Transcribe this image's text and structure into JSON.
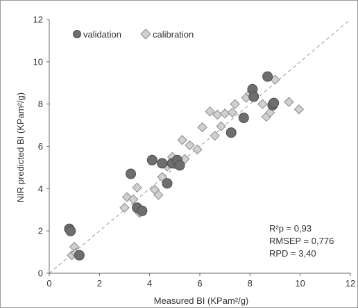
{
  "chart_data": {
    "type": "scatter",
    "xlabel": "Measured BI (KPam²/g)",
    "ylabel": "NIR predicted BI (KPam²/g)",
    "xlim": [
      0,
      12
    ],
    "ylim": [
      0,
      12
    ],
    "x_ticks": [
      "0",
      "2",
      "4",
      "6",
      "8",
      "10",
      "12"
    ],
    "y_ticks": [
      "0",
      "2",
      "4",
      "6",
      "8",
      "10",
      "12"
    ],
    "grid": false,
    "reference_line": "1:1 dashed",
    "legend_position": "top-left",
    "series": [
      {
        "name": "validation",
        "marker": "circle",
        "color": "#6e6e6e",
        "points": [
          [
            0.8,
            2.1
          ],
          [
            0.85,
            2.0
          ],
          [
            1.2,
            0.85
          ],
          [
            3.25,
            4.7
          ],
          [
            3.5,
            3.1
          ],
          [
            3.7,
            2.95
          ],
          [
            4.1,
            5.35
          ],
          [
            4.5,
            5.2
          ],
          [
            4.7,
            4.25
          ],
          [
            4.9,
            5.2
          ],
          [
            5.1,
            5.35
          ],
          [
            5.2,
            5.1
          ],
          [
            7.25,
            6.65
          ],
          [
            7.75,
            7.35
          ],
          [
            8.1,
            8.7
          ],
          [
            8.15,
            8.35
          ],
          [
            8.7,
            9.3
          ],
          [
            8.9,
            7.95
          ],
          [
            8.95,
            8.05
          ]
        ]
      },
      {
        "name": "calibration",
        "marker": "diamond",
        "color": "#d0d0d0",
        "points": [
          [
            0.9,
            0.85
          ],
          [
            1.0,
            1.25
          ],
          [
            1.05,
            0.95
          ],
          [
            3.0,
            3.1
          ],
          [
            3.1,
            3.6
          ],
          [
            3.35,
            3.5
          ],
          [
            3.5,
            4.05
          ],
          [
            3.6,
            2.85
          ],
          [
            4.2,
            3.95
          ],
          [
            4.35,
            3.7
          ],
          [
            4.5,
            4.55
          ],
          [
            4.7,
            5.05
          ],
          [
            4.9,
            5.5
          ],
          [
            5.0,
            5.15
          ],
          [
            5.3,
            6.3
          ],
          [
            5.4,
            5.4
          ],
          [
            5.6,
            6.05
          ],
          [
            5.9,
            5.85
          ],
          [
            6.1,
            6.9
          ],
          [
            6.4,
            7.65
          ],
          [
            6.6,
            6.5
          ],
          [
            6.7,
            7.5
          ],
          [
            6.85,
            6.95
          ],
          [
            7.0,
            7.55
          ],
          [
            7.3,
            7.6
          ],
          [
            7.4,
            8.0
          ],
          [
            7.85,
            8.3
          ],
          [
            8.0,
            8.5
          ],
          [
            8.5,
            8.0
          ],
          [
            8.65,
            7.4
          ],
          [
            8.8,
            7.6
          ],
          [
            9.0,
            9.15
          ],
          [
            9.55,
            8.1
          ],
          [
            9.95,
            7.75
          ]
        ]
      }
    ],
    "annotations": [
      "R²p = 0,93",
      "RMSEP = 0,776",
      "RPD = 3,40"
    ]
  }
}
